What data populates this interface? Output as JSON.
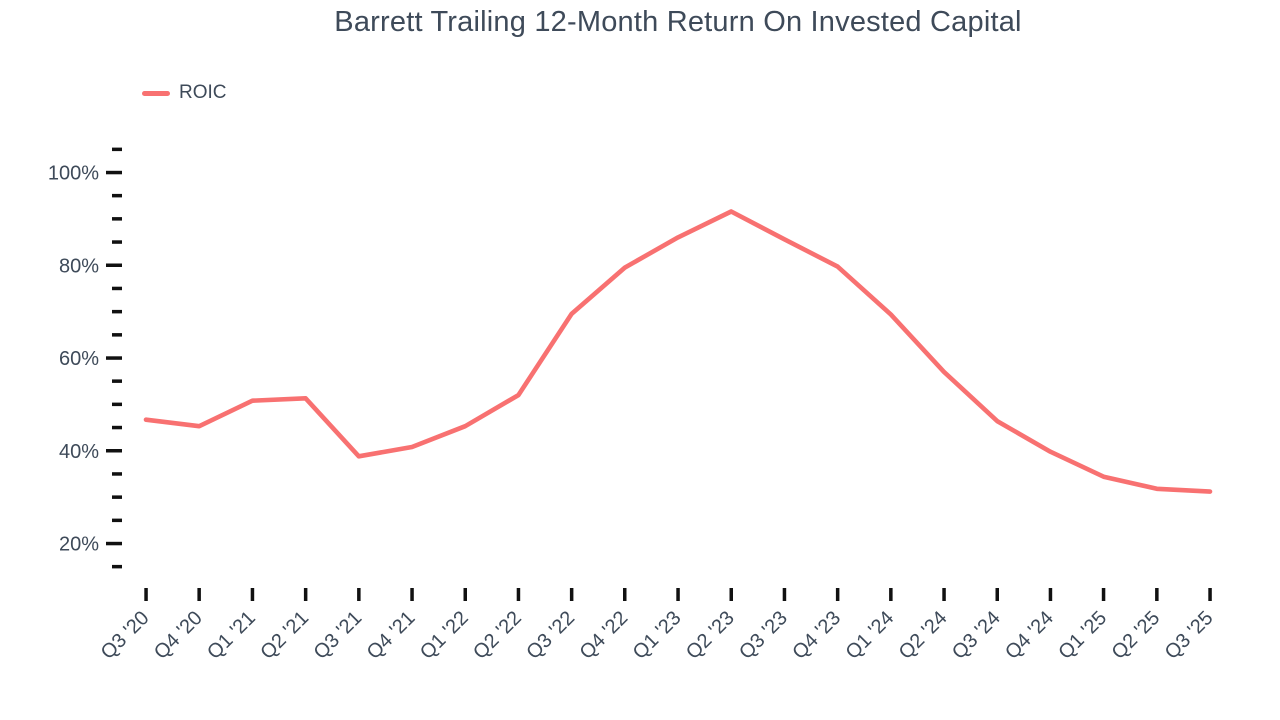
{
  "page": {
    "background": "#ffffff"
  },
  "colors": {
    "line": "#f87171",
    "text": "#3e4a59",
    "tick": "#111111"
  },
  "chart_data": {
    "type": "line",
    "title": "Barrett Trailing 12-Month Return On Invested Capital",
    "xlabel": "",
    "ylabel": "",
    "grid": false,
    "legend_position": "top-left",
    "categories": [
      "Q3 '20",
      "Q4 '20",
      "Q1 '21",
      "Q2 '21",
      "Q3 '21",
      "Q4 '21",
      "Q1 '22",
      "Q2 '22",
      "Q3 '22",
      "Q4 '22",
      "Q1 '23",
      "Q2 '23",
      "Q3 '23",
      "Q4 '23",
      "Q1 '24",
      "Q2 '24",
      "Q3 '24",
      "Q4 '24",
      "Q1 '25",
      "Q2 '25",
      "Q3 '25"
    ],
    "series": [
      {
        "name": "ROIC",
        "color": "#f87171",
        "values": [
          46.7,
          45.3,
          50.8,
          51.3,
          38.8,
          40.8,
          45.3,
          52.0,
          69.5,
          79.5,
          86.0,
          91.6,
          85.6,
          79.7,
          69.4,
          57.0,
          46.4,
          39.8,
          34.4,
          31.8,
          31.2
        ]
      }
    ],
    "y_axis": {
      "unit": "%",
      "range": [
        15,
        105
      ],
      "major_ticks": [
        {
          "value": 100,
          "label": "100%"
        },
        {
          "value": 80,
          "label": "80%"
        },
        {
          "value": 60,
          "label": "60%"
        },
        {
          "value": 40,
          "label": "40%"
        },
        {
          "value": 20,
          "label": "20%"
        }
      ],
      "minor_tick_values": [
        105,
        95,
        90,
        85,
        75,
        70,
        65,
        55,
        50,
        45,
        35,
        30,
        25,
        15
      ]
    }
  }
}
